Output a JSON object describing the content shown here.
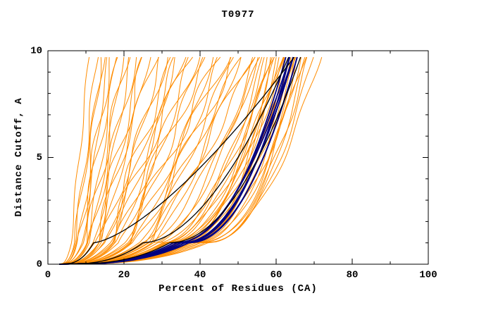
{
  "chart_data": {
    "type": "line",
    "title": "T0977",
    "xlabel": "Percent of Residues (CA)",
    "ylabel": "Distance Cutoff, A",
    "xlim": [
      0,
      100
    ],
    "ylim": [
      0,
      10
    ],
    "xticks": [
      0,
      20,
      40,
      60,
      80,
      100
    ],
    "yticks": [
      0,
      5,
      10
    ],
    "x_minor_step": 10,
    "y_minor_step": 1,
    "grid": false,
    "legend": null,
    "background": "#ffffff",
    "axis_color": "#000000",
    "origin_x": 3,
    "y_top_draw": 9.7,
    "encoding_note": "Each curve is [x_at_cutoff_1, x_at_cutoff_10, shape_exponent, wiggle]; x(y)=origin+(x1-origin)*y^0.35 for y<=1, else x1+(x10-x1)*((y-1)/9)^p, all curves start at (3,0)",
    "series": [
      {
        "name": "orange-curves",
        "color": "#ff8c00",
        "width": 1.0,
        "curves": [
          [
            6,
            11,
            1.0,
            0.3
          ],
          [
            7,
            13,
            0.9,
            0.5
          ],
          [
            7,
            15,
            1.1,
            0.4
          ],
          [
            8,
            14,
            0.8,
            0.6
          ],
          [
            8,
            17,
            1.0,
            0.8
          ],
          [
            9,
            16,
            0.9,
            0.3
          ],
          [
            9,
            19,
            1.2,
            0.7
          ],
          [
            10,
            18,
            0.8,
            0.5
          ],
          [
            10,
            21,
            1.0,
            1.0
          ],
          [
            11,
            20,
            0.9,
            0.4
          ],
          [
            11,
            24,
            1.1,
            0.8
          ],
          [
            12,
            22,
            0.85,
            0.5
          ],
          [
            12,
            26,
            1.0,
            1.2
          ],
          [
            13,
            25,
            0.9,
            0.6
          ],
          [
            13,
            29,
            1.15,
            0.9
          ],
          [
            14,
            27,
            0.95,
            0.5
          ],
          [
            14,
            32,
            1.0,
            1.0
          ],
          [
            15,
            30,
            0.85,
            0.7
          ],
          [
            15,
            35,
            1.1,
            1.3
          ],
          [
            16,
            33,
            0.9,
            0.8
          ],
          [
            16,
            38,
            1.05,
            1.5
          ],
          [
            17,
            36,
            0.95,
            0.9
          ],
          [
            18,
            40,
            1.0,
            1.2
          ],
          [
            18,
            34,
            0.8,
            0.6
          ],
          [
            19,
            43,
            1.1,
            1.4
          ],
          [
            20,
            38,
            0.85,
            0.8
          ],
          [
            20,
            46,
            1.0,
            1.6
          ],
          [
            21,
            41,
            0.9,
            1.0
          ],
          [
            22,
            48,
            1.05,
            1.2
          ],
          [
            22,
            44,
            0.8,
            0.7
          ],
          [
            23,
            50,
            0.95,
            1.5
          ],
          [
            24,
            46,
            0.85,
            0.9
          ],
          [
            25,
            52,
            1.0,
            1.1
          ],
          [
            26,
            49,
            0.9,
            0.8
          ],
          [
            27,
            54,
            0.95,
            1.3
          ],
          [
            28,
            51,
            0.8,
            0.7
          ],
          [
            28,
            56,
            0.6,
            0.5
          ],
          [
            29,
            58,
            0.55,
            0.6
          ],
          [
            30,
            57,
            0.5,
            0.4
          ],
          [
            30,
            60,
            0.6,
            0.8
          ],
          [
            31,
            59,
            0.5,
            0.5
          ],
          [
            31,
            62,
            0.55,
            0.7
          ],
          [
            32,
            58,
            0.45,
            0.4
          ],
          [
            32,
            61,
            0.5,
            0.6
          ],
          [
            33,
            63,
            0.55,
            0.5
          ],
          [
            33,
            60,
            0.45,
            0.4
          ],
          [
            34,
            62,
            0.5,
            0.6
          ],
          [
            34,
            65,
            0.55,
            0.7
          ],
          [
            35,
            61,
            0.45,
            0.3
          ],
          [
            35,
            64,
            0.5,
            0.5
          ],
          [
            36,
            63,
            0.45,
            0.4
          ],
          [
            36,
            66,
            0.5,
            0.6
          ],
          [
            37,
            65,
            0.45,
            0.3
          ],
          [
            37,
            68,
            0.5,
            0.5
          ],
          [
            38,
            64,
            0.4,
            0.3
          ],
          [
            38,
            67,
            0.45,
            0.4
          ],
          [
            39,
            66,
            0.4,
            0.3
          ],
          [
            39,
            69,
            0.45,
            0.5
          ],
          [
            40,
            68,
            0.4,
            0.3
          ],
          [
            41,
            70,
            0.45,
            0.4
          ],
          [
            42,
            72,
            0.5,
            0.5
          ],
          [
            40,
            65,
            0.35,
            0.2
          ],
          [
            36,
            59,
            0.4,
            0.3
          ],
          [
            29,
            55,
            0.65,
            0.6
          ],
          [
            26,
            57,
            0.7,
            0.9
          ],
          [
            24,
            55,
            0.75,
            1.0
          ]
        ]
      },
      {
        "name": "blue-curves",
        "color": "#000080",
        "width": 1.8,
        "curves": [
          [
            33,
            63,
            0.45,
            0
          ],
          [
            34,
            64,
            0.5,
            0
          ],
          [
            35,
            65,
            0.48,
            0
          ],
          [
            35,
            64,
            0.44,
            0
          ],
          [
            36,
            65,
            0.5,
            0
          ],
          [
            36,
            66,
            0.46,
            0
          ],
          [
            34,
            65,
            0.52,
            0
          ],
          [
            37,
            66,
            0.48,
            0
          ]
        ]
      },
      {
        "name": "black-curves",
        "color": "#000000",
        "width": 1.3,
        "curves": [
          [
            12,
            66,
            0.7,
            0
          ],
          [
            25,
            64,
            0.55,
            0
          ],
          [
            32,
            67,
            0.5,
            0
          ]
        ]
      }
    ]
  }
}
